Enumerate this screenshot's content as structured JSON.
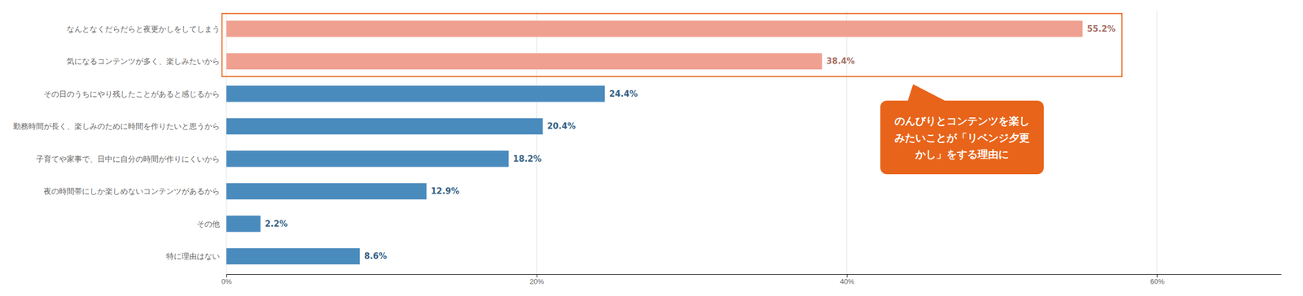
{
  "chart_data": {
    "type": "bar",
    "orientation": "horizontal",
    "categories": [
      "なんとなくだらだらと夜更かしをしてしまう",
      "気になるコンテンツが多く、楽しみたいから",
      "その日のうちにやり残したことがあると感じるから",
      "勤務時間が長く、楽しみのために時間を作りたいと思うから",
      "子育てや家事で、日中に自分の時間が作りにくいから",
      "夜の時間帯にしか楽しめないコンテンツがあるから",
      "その他",
      "特に理由はない"
    ],
    "values": [
      55.2,
      38.4,
      24.4,
      20.4,
      18.2,
      12.9,
      2.2,
      8.6
    ],
    "value_labels": [
      "55.2%",
      "38.4%",
      "24.4%",
      "20.4%",
      "18.2%",
      "12.9%",
      "2.2%",
      "8.6%"
    ],
    "data_labels": true,
    "colors": [
      "#F0A090",
      "#F0A090",
      "#4A8BBE",
      "#4A8BBE",
      "#4A8BBE",
      "#4A8BBE",
      "#4A8BBE",
      "#4A8BBE"
    ],
    "xlim": [
      0,
      68
    ],
    "xticks": [
      {
        "value": 0,
        "label": "0%"
      },
      {
        "value": 20,
        "label": "20%"
      },
      {
        "value": 40,
        "label": "40%"
      },
      {
        "value": 60,
        "label": "60%"
      }
    ],
    "grid": true,
    "annotations": [
      {
        "text": "のんびりとコンテンツを楽し\nみたいことが「リベンジ夕更\nかし」をする理由に",
        "color": "#E8641A"
      }
    ]
  }
}
